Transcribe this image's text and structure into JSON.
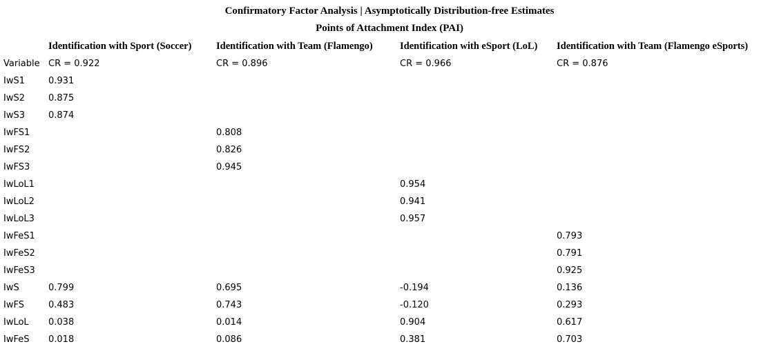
{
  "page": {
    "background_color": "#ffffff",
    "text_color": "#000000"
  },
  "title": {
    "line1": "Confirmatory Factor Analysis | Asymptotically Distribution-free Estimates",
    "line2": "Points of Attachment Index (PAI)"
  },
  "table": {
    "variable_column_header": "Variable",
    "factors": [
      {
        "label": "Identification with Sport (Soccer)",
        "cr": "CR = 0.922"
      },
      {
        "label": "Identification with Team (Flamengo)",
        "cr": "CR = 0.896"
      },
      {
        "label": "Identification with eSport (LoL)",
        "cr": "CR = 0.966"
      },
      {
        "label": "Identification with Team (Flamengo eSports)",
        "cr": "CR = 0.876"
      }
    ],
    "rows": [
      {
        "variable": "IwS1",
        "values": [
          "0.931",
          "",
          "",
          ""
        ]
      },
      {
        "variable": "IwS2",
        "values": [
          "0.875",
          "",
          "",
          ""
        ]
      },
      {
        "variable": "IwS3",
        "values": [
          "0.874",
          "",
          "",
          ""
        ]
      },
      {
        "variable": "IwFS1",
        "values": [
          "",
          "0.808",
          "",
          ""
        ]
      },
      {
        "variable": "IwFS2",
        "values": [
          "",
          "0.826",
          "",
          ""
        ]
      },
      {
        "variable": "IwFS3",
        "values": [
          "",
          "0.945",
          "",
          ""
        ]
      },
      {
        "variable": "IwLoL1",
        "values": [
          "",
          "",
          "0.954",
          ""
        ]
      },
      {
        "variable": "IwLoL2",
        "values": [
          "",
          "",
          "0.941",
          ""
        ]
      },
      {
        "variable": "IwLoL3",
        "values": [
          "",
          "",
          "0.957",
          ""
        ]
      },
      {
        "variable": "IwFeS1",
        "values": [
          "",
          "",
          "",
          "0.793"
        ]
      },
      {
        "variable": "IwFeS2",
        "values": [
          "",
          "",
          "",
          "0.791"
        ]
      },
      {
        "variable": "IwFeS3",
        "values": [
          "",
          "",
          "",
          "0.925"
        ]
      },
      {
        "variable": "IwS",
        "values": [
          "0.799",
          "0.695",
          "-0.194",
          "0.136"
        ]
      },
      {
        "variable": "IwFS",
        "values": [
          "0.483",
          "0.743",
          "-0.120",
          "0.293"
        ]
      },
      {
        "variable": "IwLoL",
        "values": [
          "0.038",
          "0.014",
          "0.904",
          "0.617"
        ]
      },
      {
        "variable": "IwFeS",
        "values": [
          "0.018",
          "0.086",
          "0.381",
          "0.703"
        ]
      }
    ]
  }
}
